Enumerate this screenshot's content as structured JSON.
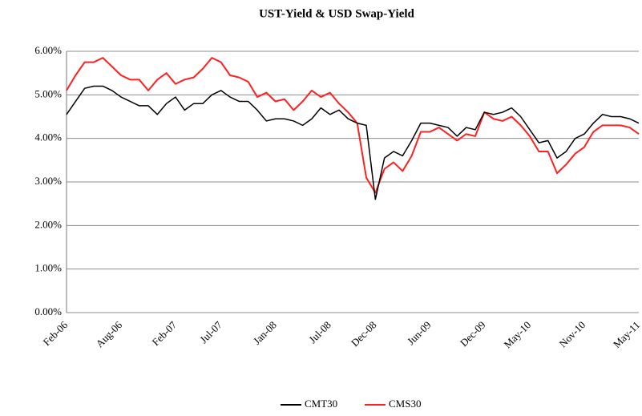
{
  "chart_data": {
    "type": "line",
    "title": "UST-Yield & USD Swap-Yield",
    "categories": [
      "Feb-06",
      null,
      null,
      null,
      null,
      null,
      "Aug-06",
      null,
      null,
      null,
      null,
      null,
      "Feb-07",
      null,
      null,
      null,
      null,
      "Jul-07",
      null,
      null,
      null,
      null,
      null,
      "Jan-08",
      null,
      null,
      null,
      null,
      null,
      "Jul-08",
      null,
      null,
      null,
      null,
      "Dec-08",
      null,
      null,
      null,
      null,
      null,
      "Jun-09",
      null,
      null,
      null,
      null,
      null,
      "Dec-09",
      null,
      null,
      null,
      null,
      "May-10",
      null,
      null,
      null,
      null,
      null,
      "Nov-10",
      null,
      null,
      null,
      null,
      null,
      "May-11"
    ],
    "series": [
      {
        "name": "CMT30",
        "color": "#000000",
        "values": [
          4.55,
          4.85,
          5.15,
          5.2,
          5.2,
          5.1,
          4.95,
          4.85,
          4.75,
          4.75,
          4.55,
          4.8,
          4.95,
          4.65,
          4.8,
          4.8,
          5.0,
          5.1,
          4.95,
          4.85,
          4.85,
          4.65,
          4.4,
          4.45,
          4.45,
          4.4,
          4.3,
          4.45,
          4.7,
          4.55,
          4.65,
          4.45,
          4.35,
          4.3,
          2.6,
          3.55,
          3.7,
          3.6,
          3.95,
          4.35,
          4.35,
          4.3,
          4.25,
          4.05,
          4.25,
          4.2,
          4.6,
          4.55,
          4.6,
          4.7,
          4.5,
          4.2,
          3.9,
          3.95,
          3.55,
          3.7,
          4.0,
          4.1,
          4.35,
          4.55,
          4.5,
          4.5,
          4.45,
          4.35
        ]
      },
      {
        "name": "CMS30",
        "color": "#ff2020",
        "values": [
          5.1,
          5.45,
          5.75,
          5.75,
          5.85,
          5.65,
          5.45,
          5.35,
          5.35,
          5.1,
          5.35,
          5.5,
          5.25,
          5.35,
          5.4,
          5.6,
          5.85,
          5.75,
          5.45,
          5.4,
          5.3,
          4.95,
          5.05,
          4.85,
          4.9,
          4.65,
          4.85,
          5.1,
          4.95,
          5.05,
          4.8,
          4.6,
          4.35,
          3.1,
          2.75,
          3.3,
          3.45,
          3.25,
          3.6,
          4.15,
          4.15,
          4.25,
          4.1,
          3.95,
          4.1,
          4.05,
          4.6,
          4.45,
          4.4,
          4.5,
          4.3,
          4.05,
          3.7,
          3.7,
          3.2,
          3.4,
          3.65,
          3.8,
          4.15,
          4.3,
          4.3,
          4.3,
          4.25,
          4.1
        ]
      }
    ],
    "ylim": [
      0,
      6
    ],
    "yticks": [
      {
        "value": 0,
        "label": "0.00%"
      },
      {
        "value": 1,
        "label": "1.00%"
      },
      {
        "value": 2,
        "label": "2.00%"
      },
      {
        "value": 3,
        "label": "3.00%"
      },
      {
        "value": 4,
        "label": "4.00%"
      },
      {
        "value": 5,
        "label": "5.00%"
      },
      {
        "value": 6,
        "label": "6.00%"
      }
    ],
    "grid": true,
    "legend": "bottom"
  }
}
